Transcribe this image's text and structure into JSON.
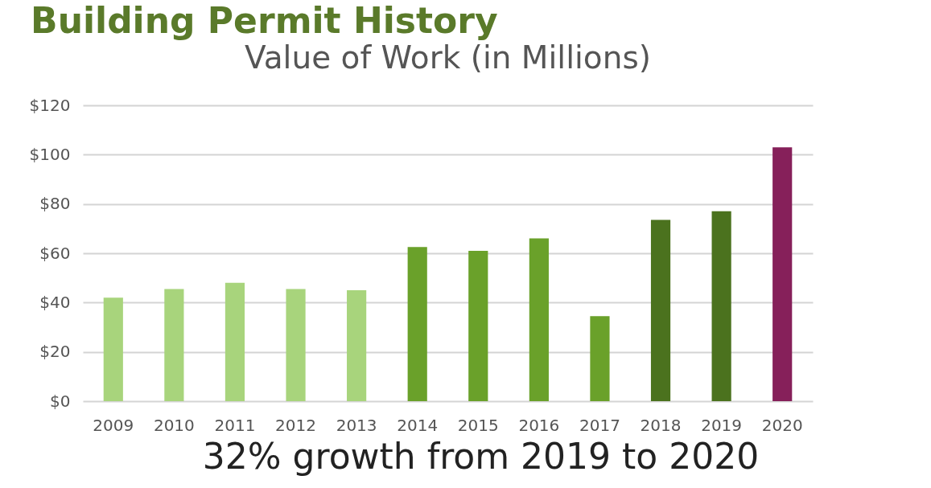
{
  "chart_data": {
    "type": "bar",
    "title": "Building Permit History",
    "subtitle": "Value of Work (in Millions)",
    "categories": [
      "2009",
      "2010",
      "2011",
      "2012",
      "2013",
      "2014",
      "2015",
      "2016",
      "2017",
      "2018",
      "2019",
      "2020"
    ],
    "values": [
      42,
      45.5,
      48,
      45.5,
      45,
      62.5,
      61,
      66,
      34.5,
      73.5,
      77,
      103
    ],
    "colors": [
      "#a8d47c",
      "#a8d47c",
      "#a8d47c",
      "#a8d47c",
      "#a8d47c",
      "#6aa12a",
      "#6aa12a",
      "#6aa12a",
      "#6aa12a",
      "#4b721e",
      "#4b721e",
      "#86205a"
    ],
    "ylim": [
      0,
      120
    ],
    "yticks": [
      {
        "value": 0,
        "label": "$0"
      },
      {
        "value": 20,
        "label": "$20"
      },
      {
        "value": 40,
        "label": "$40"
      },
      {
        "value": 60,
        "label": "$60"
      },
      {
        "value": 80,
        "label": "$80"
      },
      {
        "value": 100,
        "label": "$100"
      },
      {
        "value": 120,
        "label": "$120"
      }
    ],
    "grid": "y",
    "legend": false,
    "annotations": [
      "32% growth from 2019 to 2020"
    ]
  }
}
